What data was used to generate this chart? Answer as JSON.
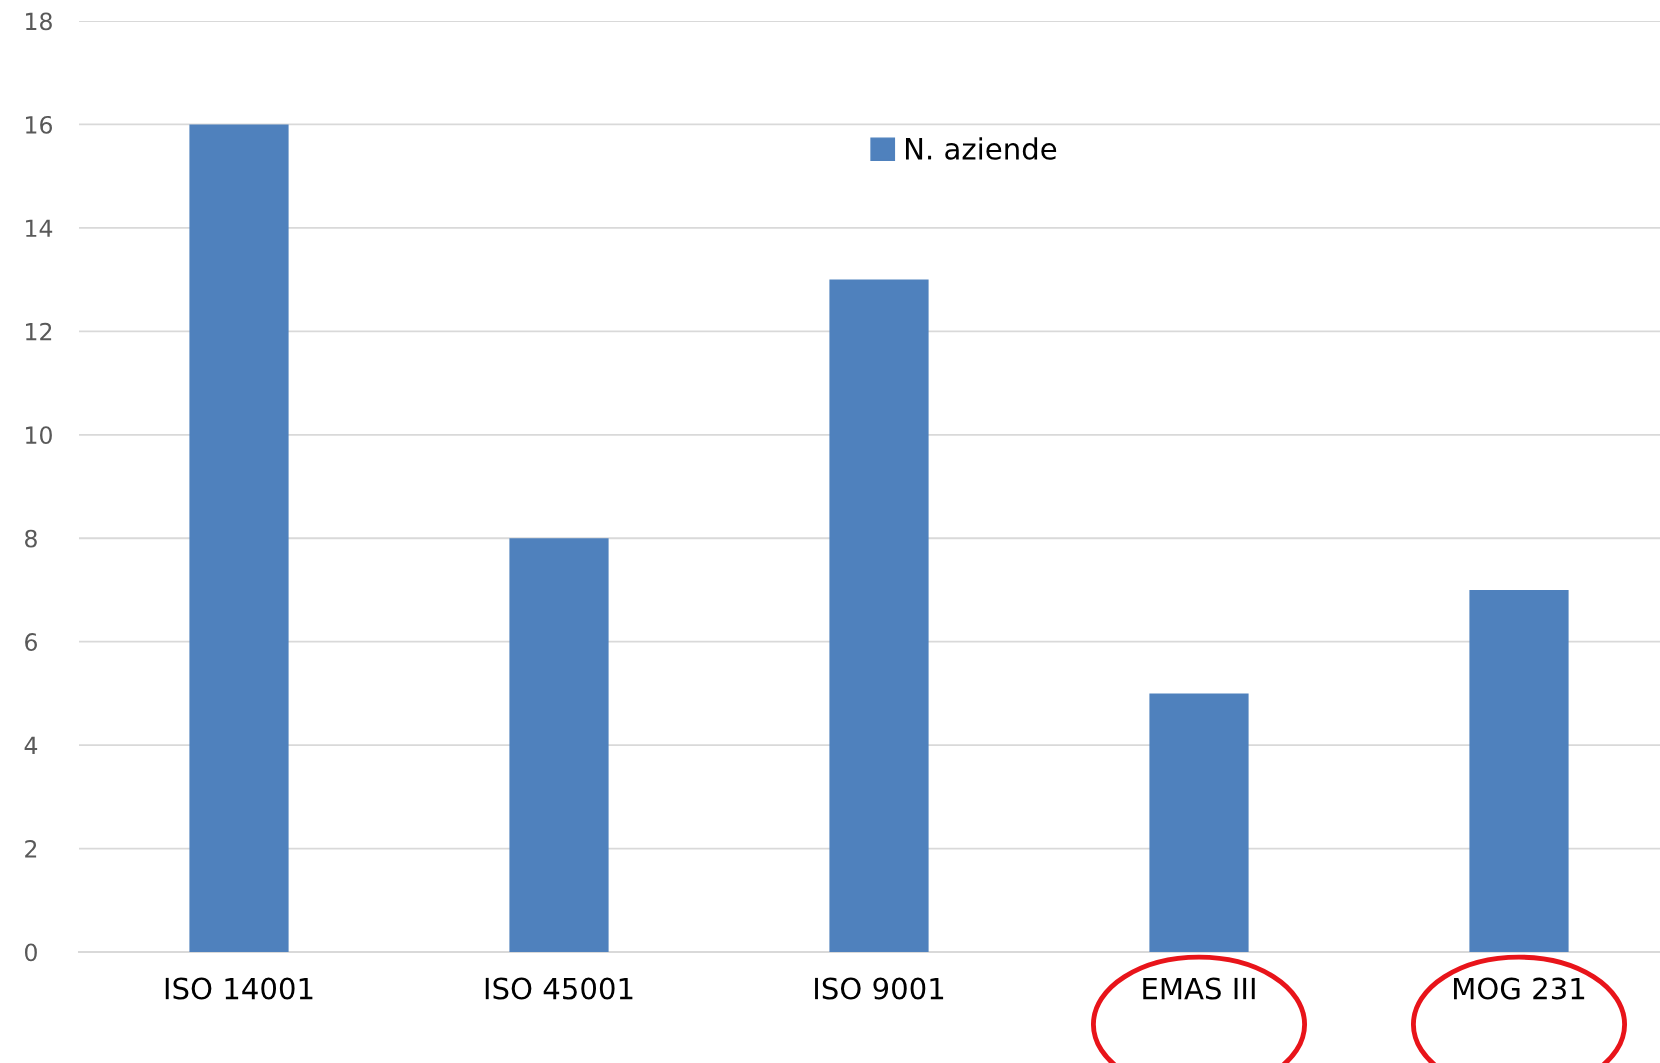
{
  "chart_data": {
    "type": "bar",
    "categories": [
      "ISO 14001",
      "ISO 45001",
      "ISO 9001",
      "EMAS III",
      "MOG 231"
    ],
    "series": [
      {
        "name": "N. aziende",
        "color": "#4f81bd",
        "values": [
          16,
          8,
          13,
          5,
          7
        ]
      }
    ],
    "ylim": [
      0,
      18
    ],
    "yticks": [
      0,
      2,
      4,
      6,
      8,
      10,
      12,
      14,
      16,
      18
    ],
    "grid": "y",
    "legend": "top"
  }
}
